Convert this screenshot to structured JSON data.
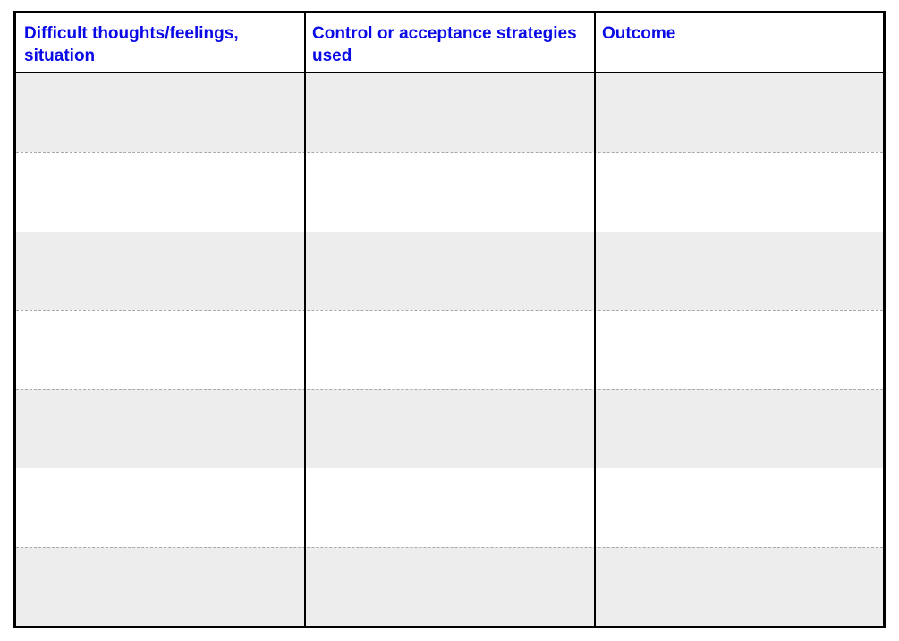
{
  "worksheet": {
    "columns": [
      {
        "label": "Difficult thoughts/feelings, situation"
      },
      {
        "label": "Control or acceptance strategies used"
      },
      {
        "label": "Outcome"
      }
    ],
    "row_count": 7,
    "colors": {
      "header_text": "#0a0ae6",
      "shaded_row": "#ededed",
      "border": "#000000"
    }
  }
}
